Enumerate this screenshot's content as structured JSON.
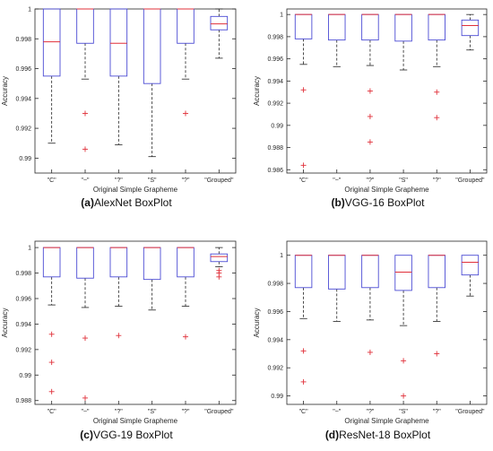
{
  "chart_data": [
    {
      "type": "box",
      "caption": {
        "letter": "(a)",
        "text": "AlexNet BoxPlot"
      },
      "xlabel": "Original Simple Grapheme",
      "ylabel": "Accuracy",
      "ylim": [
        0.989,
        1.0
      ],
      "yticks": [
        0.99,
        0.992,
        0.994,
        0.996,
        0.998,
        1
      ],
      "categories": [
        "\"C\"",
        "\"~\"",
        "\"?\"",
        "\"S\"",
        "\"?\"",
        "\"Grouped\""
      ],
      "boxes": [
        {
          "whisker_low": 0.991,
          "q1": 0.9955,
          "median": 0.9978,
          "q3": 1.0,
          "whisker_high": 1.0,
          "outliers": []
        },
        {
          "whisker_low": 0.9953,
          "q1": 0.9977,
          "median": 1.0,
          "q3": 1.0,
          "whisker_high": 1.0,
          "outliers": [
            0.993,
            0.9906
          ]
        },
        {
          "whisker_low": 0.9909,
          "q1": 0.9955,
          "median": 0.9977,
          "q3": 1.0,
          "whisker_high": 1.0,
          "outliers": []
        },
        {
          "whisker_low": 0.9901,
          "q1": 0.995,
          "median": 1.0,
          "q3": 1.0,
          "whisker_high": 1.0,
          "outliers": []
        },
        {
          "whisker_low": 0.9953,
          "q1": 0.9977,
          "median": 1.0,
          "q3": 1.0,
          "whisker_high": 1.0,
          "outliers": [
            0.993
          ]
        },
        {
          "whisker_low": 0.9967,
          "q1": 0.9986,
          "median": 0.999,
          "q3": 0.9995,
          "whisker_high": 1.0,
          "outliers": []
        }
      ]
    },
    {
      "type": "box",
      "caption": {
        "letter": "(b)",
        "text": "VGG-16 BoxPlot"
      },
      "xlabel": "Original Simple Grapheme",
      "ylabel": "Accuracy",
      "ylim": [
        0.9857,
        1.0005
      ],
      "yticks": [
        0.986,
        0.988,
        0.99,
        0.992,
        0.994,
        0.996,
        0.998,
        1
      ],
      "categories": [
        "\"C\"",
        "\"~\"",
        "\"?\"",
        "\"S\"",
        "\"?\"",
        "\"Grouped\""
      ],
      "boxes": [
        {
          "whisker_low": 0.9955,
          "q1": 0.9978,
          "median": 1.0,
          "q3": 1.0,
          "whisker_high": 1.0,
          "outliers": [
            0.9932,
            0.9864
          ]
        },
        {
          "whisker_low": 0.9953,
          "q1": 0.9977,
          "median": 1.0,
          "q3": 1.0,
          "whisker_high": 1.0,
          "outliers": []
        },
        {
          "whisker_low": 0.9954,
          "q1": 0.9977,
          "median": 1.0,
          "q3": 1.0,
          "whisker_high": 1.0,
          "outliers": [
            0.9931,
            0.9908,
            0.9885
          ]
        },
        {
          "whisker_low": 0.995,
          "q1": 0.9976,
          "median": 1.0,
          "q3": 1.0,
          "whisker_high": 1.0,
          "outliers": []
        },
        {
          "whisker_low": 0.9953,
          "q1": 0.9977,
          "median": 1.0,
          "q3": 1.0,
          "whisker_high": 1.0,
          "outliers": [
            0.993,
            0.9907
          ]
        },
        {
          "whisker_low": 0.9968,
          "q1": 0.9981,
          "median": 0.999,
          "q3": 0.9995,
          "whisker_high": 1.0,
          "outliers": []
        }
      ]
    },
    {
      "type": "box",
      "caption": {
        "letter": "(c)",
        "text": "VGG-19 BoxPlot"
      },
      "xlabel": "Original Simple Grapheme",
      "ylabel": "Accuracy",
      "ylim": [
        0.9877,
        1.0005
      ],
      "yticks": [
        0.988,
        0.99,
        0.992,
        0.994,
        0.996,
        0.998,
        1
      ],
      "categories": [
        "\"C\"",
        "\"~\"",
        "\"?\"",
        "\"S\"",
        "\"?\"",
        "\"Grouped\""
      ],
      "boxes": [
        {
          "whisker_low": 0.9955,
          "q1": 0.9977,
          "median": 1.0,
          "q3": 1.0,
          "whisker_high": 1.0,
          "outliers": [
            0.9932,
            0.991,
            0.9887
          ]
        },
        {
          "whisker_low": 0.9953,
          "q1": 0.9976,
          "median": 1.0,
          "q3": 1.0,
          "whisker_high": 1.0,
          "outliers": [
            0.9929,
            0.9882
          ]
        },
        {
          "whisker_low": 0.9954,
          "q1": 0.9977,
          "median": 1.0,
          "q3": 1.0,
          "whisker_high": 1.0,
          "outliers": [
            0.9931
          ]
        },
        {
          "whisker_low": 0.9951,
          "q1": 0.9975,
          "median": 1.0,
          "q3": 1.0,
          "whisker_high": 1.0,
          "outliers": []
        },
        {
          "whisker_low": 0.9954,
          "q1": 0.9977,
          "median": 1.0,
          "q3": 1.0,
          "whisker_high": 1.0,
          "outliers": [
            0.993
          ]
        },
        {
          "whisker_low": 0.9985,
          "q1": 0.9989,
          "median": 0.9993,
          "q3": 0.9995,
          "whisker_high": 1.0,
          "outliers": [
            0.9982,
            0.998,
            0.9977
          ]
        }
      ]
    },
    {
      "type": "box",
      "caption": {
        "letter": "(d)",
        "text": "ResNet-18 BoxPlot"
      },
      "xlabel": "Original Simple Grapheme",
      "ylabel": "Accuracy",
      "ylim": [
        0.9894,
        1.001
      ],
      "yticks": [
        0.99,
        0.992,
        0.994,
        0.996,
        0.998,
        1
      ],
      "categories": [
        "\"C\"",
        "\"~\"",
        "\"?\"",
        "\"S\"",
        "\"?\"",
        "\"Grouped\""
      ],
      "boxes": [
        {
          "whisker_low": 0.9955,
          "q1": 0.9977,
          "median": 1.0,
          "q3": 1.0,
          "whisker_high": 1.0,
          "outliers": [
            0.9932,
            0.991
          ]
        },
        {
          "whisker_low": 0.9953,
          "q1": 0.9976,
          "median": 1.0,
          "q3": 1.0,
          "whisker_high": 1.0,
          "outliers": []
        },
        {
          "whisker_low": 0.9954,
          "q1": 0.9977,
          "median": 1.0,
          "q3": 1.0,
          "whisker_high": 1.0,
          "outliers": [
            0.9931
          ]
        },
        {
          "whisker_low": 0.995,
          "q1": 0.9975,
          "median": 0.9988,
          "q3": 1.0,
          "whisker_high": 1.0,
          "outliers": [
            0.9925,
            0.99
          ]
        },
        {
          "whisker_low": 0.9953,
          "q1": 0.9977,
          "median": 1.0,
          "q3": 1.0,
          "whisker_high": 1.0,
          "outliers": [
            0.993
          ]
        },
        {
          "whisker_low": 0.9971,
          "q1": 0.9986,
          "median": 0.9995,
          "q3": 1.0,
          "whisker_high": 1.0,
          "outliers": []
        }
      ]
    }
  ],
  "colors": {
    "box": "#4b4bd4",
    "median": "#e0303a",
    "whisker": "#222222",
    "outlier": "#e0303a",
    "axis": "#262626",
    "text": "#262626"
  }
}
